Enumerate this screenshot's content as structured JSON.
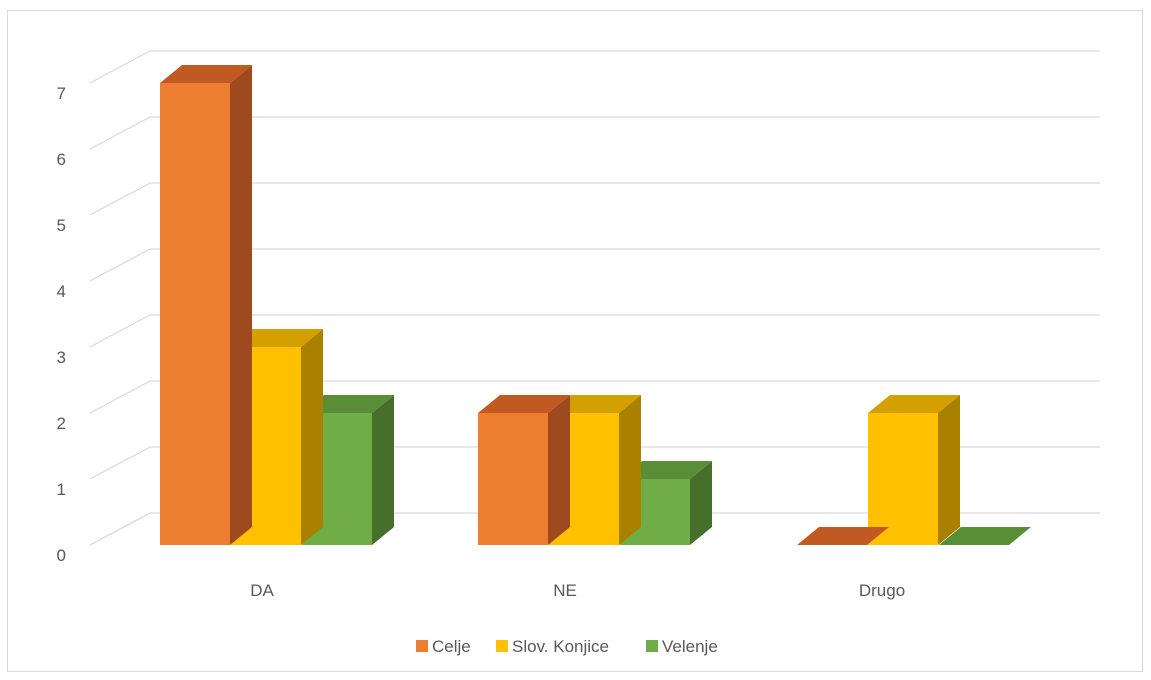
{
  "chart_data": {
    "type": "bar",
    "style": "3d-clustered-column",
    "categories": [
      "DA",
      "NE",
      "Drugo"
    ],
    "series": [
      {
        "name": "Celje",
        "values": [
          7,
          2,
          0
        ],
        "color": "#ED7D31",
        "side": "#9E4A1E",
        "top": "#C05A22"
      },
      {
        "name": "Slov. Konjice",
        "values": [
          3,
          2,
          2
        ],
        "color": "#FFC000",
        "side": "#AA8000",
        "top": "#D4A000"
      },
      {
        "name": "Velenje",
        "values": [
          2,
          1,
          0
        ],
        "color": "#70AD47",
        "side": "#466F2B",
        "top": "#5A8E36"
      }
    ],
    "ylim": [
      0,
      7
    ],
    "yticks": [
      0,
      1,
      2,
      3,
      4,
      5,
      6,
      7
    ],
    "grid": true,
    "legend": "bottom",
    "title": "",
    "xlabel": "",
    "ylabel": ""
  }
}
